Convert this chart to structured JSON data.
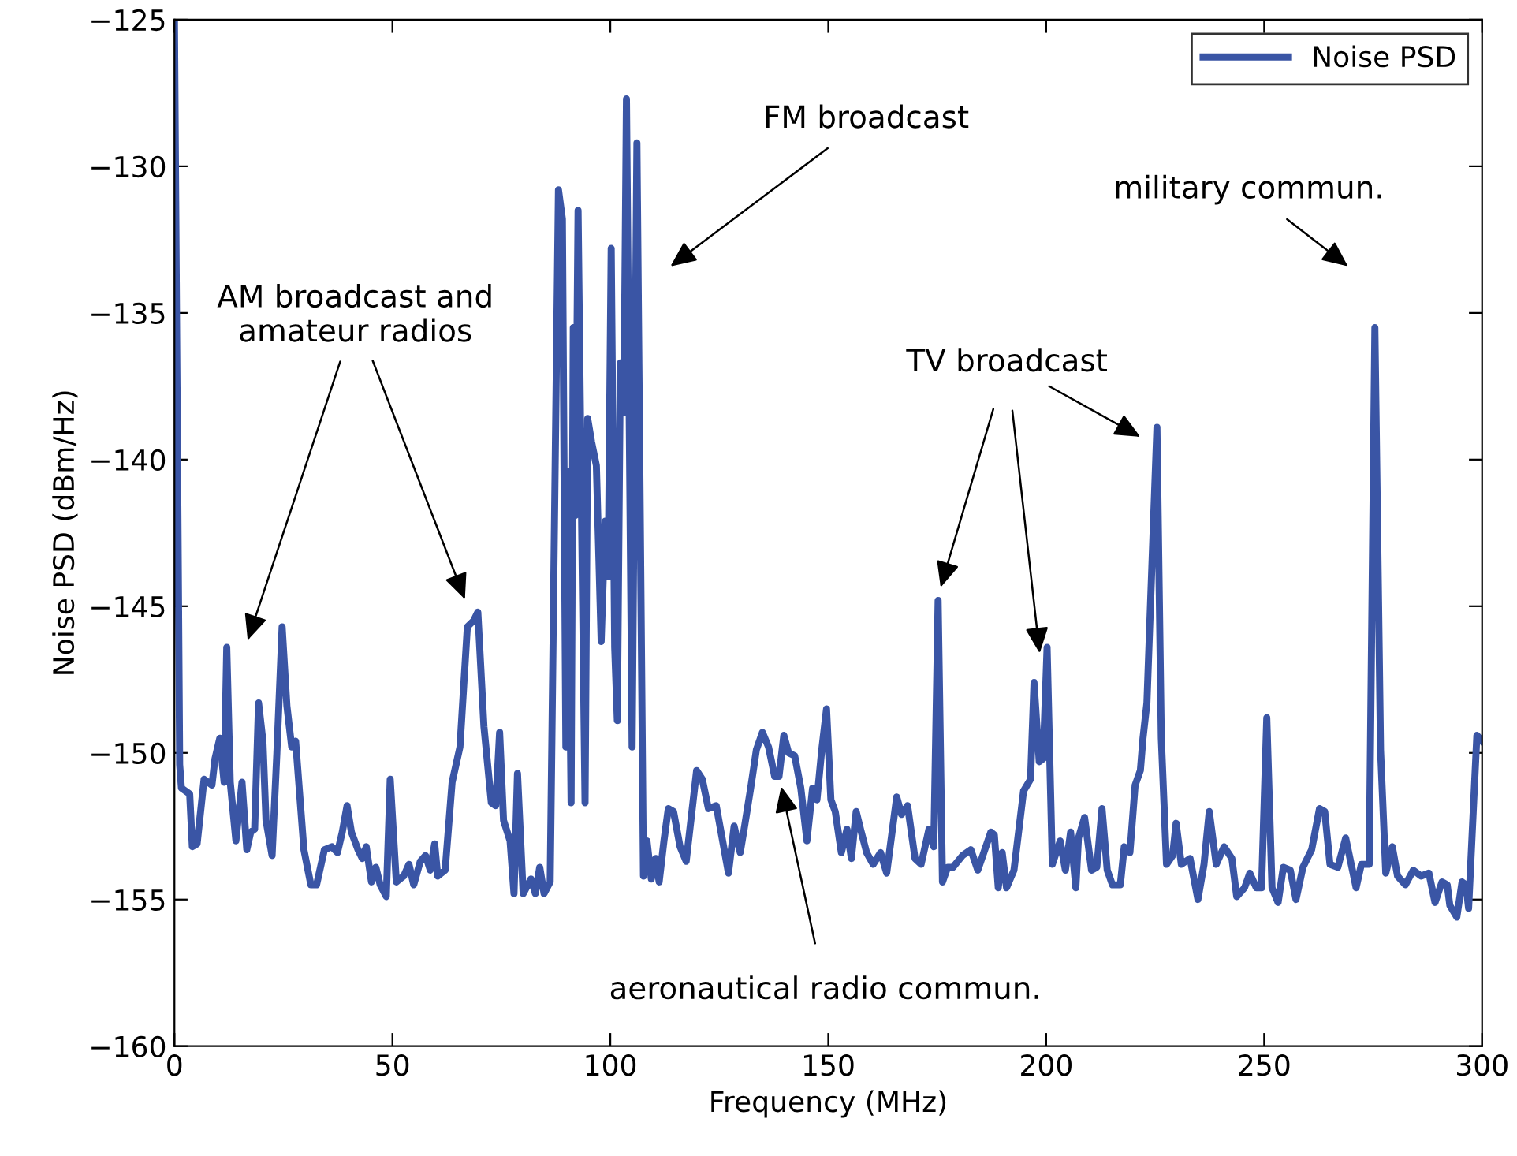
{
  "chart_data": {
    "type": "line",
    "xlabel": "Frequency (MHz)",
    "ylabel": "Noise PSD (dBm/Hz)",
    "xlim": [
      0,
      300
    ],
    "xticks": [
      0,
      50,
      100,
      150,
      200,
      250,
      300
    ],
    "ylim": [
      -160,
      -125
    ],
    "yticks": [
      -160,
      -155,
      -150,
      -145,
      -140,
      -135,
      -130,
      -125
    ],
    "grid": false,
    "legend": "top right",
    "marker": "none",
    "line_style": "solid",
    "annotations": [
      "AM broadcast and\namateur radios",
      "FM broadcast",
      "aeronautical radio commun.",
      {
        "text": "TV broadcast",
        "x": 198.5,
        "y": -146.6
      },
      "military commun."
    ],
    "series": [
      {
        "name": "Noise PSD",
        "color": "#3a55a5",
        "x": [
          0,
          1.2,
          1.6,
          3.5,
          4.1,
          5.2,
          6.8,
          8.6,
          9.3,
          10.4,
          11.4,
          12.0,
          12.8,
          14.1,
          15.5,
          16.6,
          17.5,
          18.4,
          19.3,
          20.3,
          21.0,
          22.4,
          23.5,
          24.7,
          25.8,
          26.9,
          27.8,
          29.7,
          31.3,
          32.6,
          34.4,
          36.1,
          37.4,
          38.5,
          39.6,
          40.6,
          42.1,
          43.1,
          44.0,
          45.2,
          46.2,
          47.2,
          48.6,
          49.5,
          50.9,
          52.6,
          53.8,
          54.9,
          56.4,
          57.6,
          58.7,
          59.7,
          60.4,
          62.1,
          63.7,
          65.5,
          67.2,
          68.6,
          69.6,
          71.0,
          72.7,
          73.7,
          74.6,
          75.5,
          77.0,
          77.9,
          78.7,
          80.0,
          81.8,
          82.8,
          83.8,
          84.8,
          86.2,
          88.1,
          89.0,
          89.8,
          90.2,
          91.0,
          91.5,
          92.0,
          92.6,
          93.4,
          94.2,
          94.8,
          95.7,
          96.8,
          97.9,
          98.8,
          99.5,
          100.2,
          101.0,
          101.6,
          102.3,
          103.1,
          103.7,
          105.0,
          106.1,
          107.6,
          108.4,
          109.4,
          110.4,
          111.2,
          112.3,
          113.3,
          114.5,
          116.0,
          117.4,
          119.8,
          121.1,
          122.5,
          124.3,
          127.1,
          128.4,
          129.8,
          130.8,
          132.2,
          133.5,
          134.9,
          136.3,
          137.7,
          138.7,
          139.8,
          140.9,
          142.3,
          143.7,
          145.1,
          146.4,
          147.4,
          148.5,
          149.6,
          150.6,
          151.6,
          153.0,
          154.3,
          155.3,
          156.4,
          157.4,
          158.8,
          160.3,
          162.0,
          163.4,
          165.7,
          166.8,
          168.2,
          169.9,
          171.3,
          173.1,
          174.2,
          175.2,
          176.2,
          177.4,
          178.6,
          180.8,
          182.7,
          184.3,
          187.3,
          188.1,
          189.0,
          189.9,
          190.9,
          192.6,
          194.8,
          196.4,
          197.2,
          198.4,
          199.3,
          200.2,
          201.4,
          203.2,
          204.4,
          205.6,
          206.8,
          207.4,
          208.8,
          210.4,
          211.6,
          212.8,
          214.0,
          215.2,
          217.0,
          217.9,
          219.2,
          220.4,
          221.6,
          222.2,
          223.1,
          225.4,
          226.4,
          227.6,
          229.0,
          229.8,
          231.0,
          233.0,
          234.8,
          236.2,
          237.4,
          239.0,
          240.8,
          242.6,
          243.7,
          245.5,
          246.7,
          248.2,
          249.4,
          250.6,
          251.8,
          253.2,
          254.4,
          256.0,
          257.3,
          258.9,
          260.9,
          262.7,
          263.9,
          265.1,
          266.9,
          268.7,
          271.1,
          272.3,
          274.1,
          275.4,
          276.7,
          277.9,
          279.4,
          280.6,
          282.4,
          284.2,
          286.0,
          287.8,
          289.2,
          290.8,
          292.0,
          292.6,
          294.2,
          295.4,
          296.3,
          296.9,
          298.8,
          300
        ],
        "values": [
          -125,
          -150.4,
          -151.2,
          -151.4,
          -153.2,
          -153.1,
          -150.9,
          -151.1,
          -150.2,
          -149.5,
          -151.0,
          -146.4,
          -151.0,
          -153.0,
          -151.0,
          -153.3,
          -152.7,
          -152.6,
          -148.3,
          -149.6,
          -152.3,
          -153.5,
          -150.0,
          -145.7,
          -148.4,
          -149.8,
          -149.6,
          -153.3,
          -154.5,
          -154.5,
          -153.3,
          -153.2,
          -153.4,
          -152.7,
          -151.8,
          -152.7,
          -153.3,
          -153.6,
          -153.2,
          -154.4,
          -153.9,
          -154.5,
          -154.9,
          -150.9,
          -154.4,
          -154.2,
          -153.8,
          -154.5,
          -153.7,
          -153.5,
          -154.0,
          -153.1,
          -154.2,
          -154.0,
          -151.0,
          -149.8,
          -145.7,
          -145.5,
          -145.2,
          -149.1,
          -151.7,
          -151.8,
          -149.3,
          -152.3,
          -153.0,
          -154.8,
          -150.7,
          -154.8,
          -154.3,
          -154.8,
          -153.9,
          -154.8,
          -154.4,
          -130.8,
          -131.8,
          -149.8,
          -140.4,
          -151.7,
          -135.5,
          -141.9,
          -131.5,
          -141.9,
          -151.7,
          -138.6,
          -139.4,
          -140.2,
          -146.2,
          -142.1,
          -144.0,
          -132.8,
          -146.4,
          -148.9,
          -136.7,
          -138.4,
          -127.7,
          -149.8,
          -129.2,
          -154.2,
          -153.0,
          -154.3,
          -153.6,
          -154.4,
          -153.0,
          -151.9,
          -152.0,
          -153.2,
          -153.7,
          -150.6,
          -150.9,
          -151.9,
          -151.8,
          -154.1,
          -152.5,
          -153.4,
          -152.5,
          -151.2,
          -149.9,
          -149.3,
          -149.8,
          -150.8,
          -150.8,
          -149.4,
          -150.0,
          -150.1,
          -151.2,
          -153.0,
          -151.2,
          -151.6,
          -149.9,
          -148.5,
          -151.6,
          -152.0,
          -153.4,
          -152.6,
          -153.6,
          -152.0,
          -152.6,
          -153.4,
          -153.8,
          -153.4,
          -154.1,
          -151.5,
          -152.1,
          -151.8,
          -153.6,
          -153.8,
          -152.6,
          -153.2,
          -144.8,
          -154.4,
          -153.9,
          -153.9,
          -153.5,
          -153.3,
          -154.0,
          -152.7,
          -152.8,
          -154.6,
          -153.4,
          -154.6,
          -154.0,
          -151.3,
          -150.9,
          -147.6,
          -150.3,
          -150.2,
          -146.4,
          -153.8,
          -153.0,
          -154.0,
          -152.7,
          -154.6,
          -152.9,
          -152.2,
          -154.0,
          -153.9,
          -151.9,
          -154.0,
          -154.5,
          -154.5,
          -153.2,
          -153.4,
          -151.1,
          -150.6,
          -149.5,
          -148.3,
          -138.9,
          -149.5,
          -153.8,
          -153.5,
          -152.4,
          -153.8,
          -153.6,
          -155.0,
          -153.8,
          -152.0,
          -153.8,
          -153.2,
          -153.6,
          -154.9,
          -154.6,
          -154.1,
          -154.6,
          -154.6,
          -148.8,
          -154.6,
          -155.1,
          -153.9,
          -154.0,
          -155.0,
          -153.9,
          -153.3,
          -151.9,
          -152.0,
          -153.8,
          -153.9,
          -152.9,
          -154.6,
          -153.8,
          -153.8,
          -135.5,
          -149.9,
          -154.1,
          -153.2,
          -154.2,
          -154.5,
          -154.0,
          -154.2,
          -154.1,
          -155.1,
          -154.4,
          -154.5,
          -155.2,
          -155.6,
          -154.4,
          -154.5,
          -155.3,
          -149.4,
          -149.6
        ]
      }
    ]
  }
}
